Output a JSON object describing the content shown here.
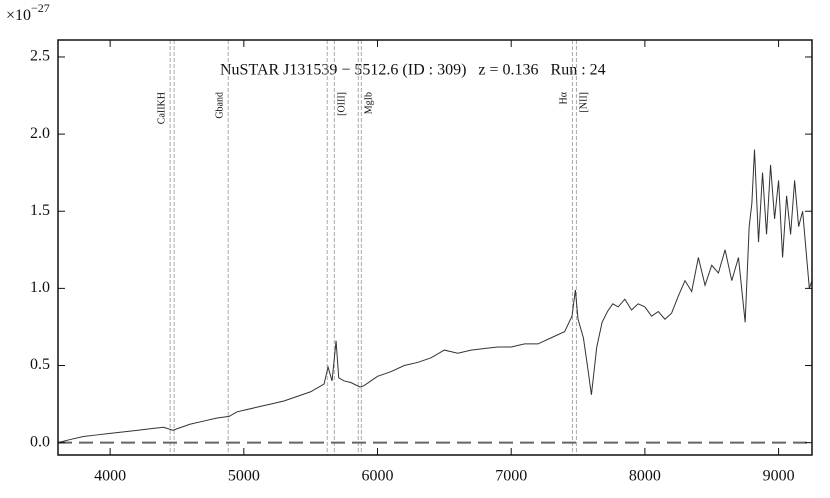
{
  "chart_data": {
    "type": "line",
    "title": "NuSTAR J131539 − 5512.6 (ID : 309)   z = 0.136   Run : 24",
    "y_offset_base": "×10",
    "y_offset_exp": "−27",
    "color": "#333333",
    "x": [
      3610,
      3700,
      3800,
      3900,
      4000,
      4100,
      4200,
      4300,
      4400,
      4470,
      4500,
      4600,
      4700,
      4800,
      4890,
      4950,
      5000,
      5100,
      5200,
      5300,
      5400,
      5500,
      5600,
      5630,
      5660,
      5690,
      5710,
      5750,
      5800,
      5870,
      5900,
      5950,
      6000,
      6100,
      6200,
      6300,
      6400,
      6500,
      6600,
      6700,
      6800,
      6900,
      7000,
      7100,
      7200,
      7300,
      7400,
      7455,
      7480,
      7500,
      7540,
      7570,
      7600,
      7640,
      7680,
      7720,
      7760,
      7800,
      7850,
      7900,
      7950,
      8000,
      8050,
      8100,
      8150,
      8200,
      8250,
      8300,
      8350,
      8400,
      8450,
      8500,
      8550,
      8600,
      8650,
      8700,
      8750,
      8780,
      8800,
      8820,
      8850,
      8880,
      8910,
      8940,
      8970,
      9000,
      9030,
      9060,
      9090,
      9120,
      9150,
      9180,
      9200,
      9230,
      9250
    ],
    "values": [
      0.0,
      0.02,
      0.04,
      0.05,
      0.06,
      0.07,
      0.08,
      0.09,
      0.1,
      0.08,
      0.09,
      0.12,
      0.14,
      0.16,
      0.17,
      0.2,
      0.21,
      0.23,
      0.25,
      0.27,
      0.3,
      0.33,
      0.38,
      0.49,
      0.4,
      0.66,
      0.42,
      0.4,
      0.39,
      0.36,
      0.37,
      0.4,
      0.43,
      0.46,
      0.5,
      0.52,
      0.55,
      0.6,
      0.58,
      0.6,
      0.61,
      0.62,
      0.62,
      0.64,
      0.64,
      0.68,
      0.72,
      0.82,
      0.99,
      0.8,
      0.68,
      0.5,
      0.31,
      0.62,
      0.78,
      0.85,
      0.9,
      0.88,
      0.93,
      0.86,
      0.9,
      0.88,
      0.82,
      0.85,
      0.8,
      0.84,
      0.95,
      1.05,
      0.98,
      1.2,
      1.02,
      1.15,
      1.1,
      1.25,
      1.05,
      1.2,
      0.78,
      1.4,
      1.55,
      1.9,
      1.3,
      1.75,
      1.35,
      1.8,
      1.45,
      1.7,
      1.2,
      1.6,
      1.35,
      1.7,
      1.4,
      1.5,
      1.3,
      1.0,
      1.05
    ],
    "hline": 0,
    "lines": [
      {
        "name": "CaIIKH",
        "x": [
          4449,
          4479
        ]
      },
      {
        "name": "Gband",
        "x": [
          4883
        ]
      },
      {
        "name": "[OIII]",
        "x": [
          5624,
          5677
        ]
      },
      {
        "name": "MgIb",
        "x": [
          5856,
          5879
        ]
      },
      {
        "name": "Hα",
        "x": [
          7458
        ]
      },
      {
        "name": "[NII]",
        "x": [
          7488
        ]
      }
    ],
    "xlim": [
      3610,
      9250
    ],
    "ylim": [
      -0.08,
      2.61
    ],
    "xticks": [
      4000,
      5000,
      6000,
      7000,
      8000,
      9000
    ],
    "yticks": [
      {
        "value": 0,
        "label": "0.0"
      },
      {
        "value": 0.5,
        "label": "0.5"
      },
      {
        "value": 1,
        "label": "1.0"
      },
      {
        "value": 1.5,
        "label": "1.5"
      },
      {
        "value": 2,
        "label": "2.0"
      },
      {
        "value": 2.5,
        "label": "2.5"
      }
    ]
  }
}
